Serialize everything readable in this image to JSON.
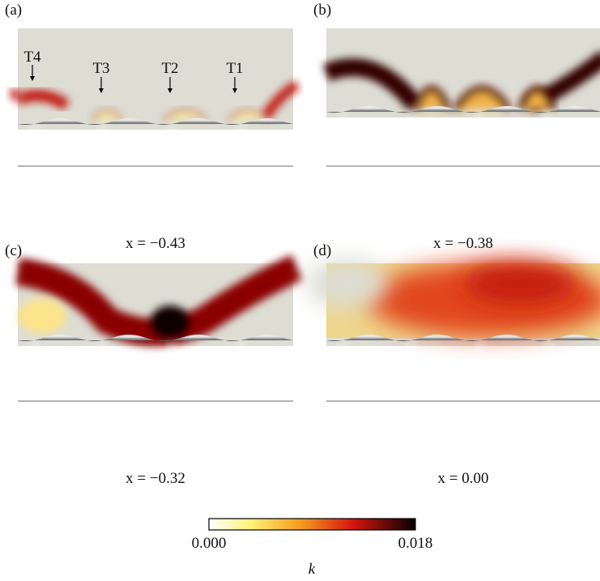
{
  "panels": [
    {
      "label": "(a)",
      "caption": "x = −0.43",
      "annotations": [
        "T4",
        "T3",
        "T2",
        "T1"
      ]
    },
    {
      "label": "(b)",
      "caption": "x = −0.38"
    },
    {
      "label": "(c)",
      "caption": "x = −0.32"
    },
    {
      "label": "(d)",
      "caption": "x = 0.00"
    }
  ],
  "colorbar": {
    "min_label": "0.000",
    "max_label": "0.018",
    "label": "k"
  }
}
